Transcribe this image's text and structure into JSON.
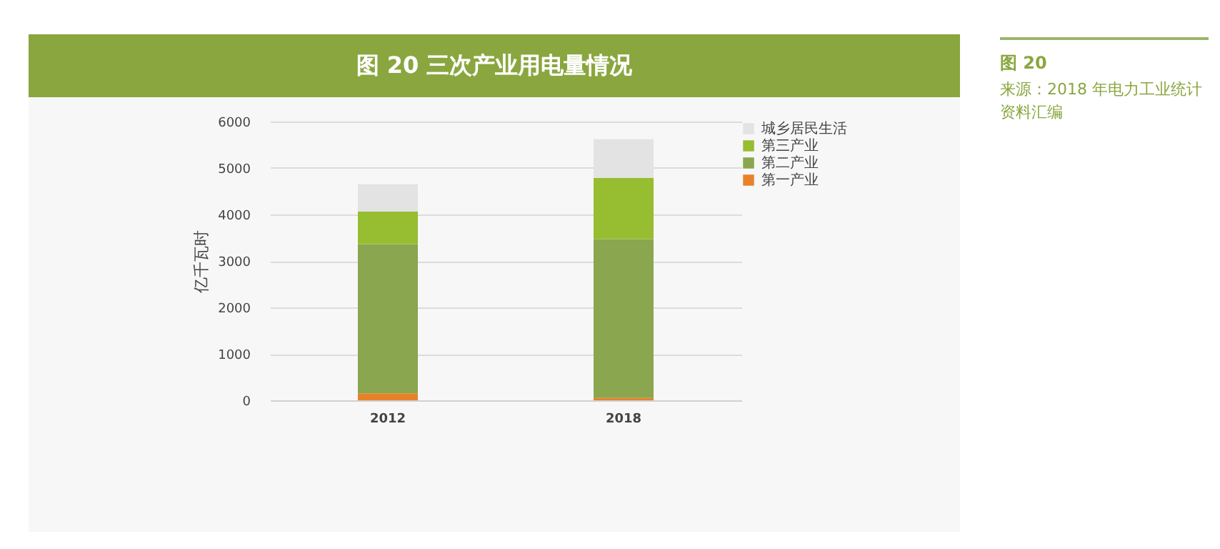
{
  "chart_data": {
    "type": "bar",
    "title": "图 20  三次产业用电量情况",
    "ylabel": "亿千瓦时",
    "categories": [
      "2012",
      "2018"
    ],
    "stacked": true,
    "series": [
      {
        "name": "第一产业",
        "color": "#e8822a",
        "values": [
          150,
          50
        ]
      },
      {
        "name": "第二产业",
        "color": "#8aa64f",
        "values": [
          3210,
          3420
        ]
      },
      {
        "name": "第三产业",
        "color": "#97bd31",
        "values": [
          700,
          1320
        ]
      },
      {
        "name": "城乡居民生活",
        "color": "#e3e3e3",
        "values": [
          590,
          830
        ]
      }
    ],
    "ylim": [
      0,
      6000
    ],
    "yticks": [
      0,
      1000,
      2000,
      3000,
      4000,
      5000,
      6000
    ],
    "grid": "y",
    "legend": "right",
    "annotations": [
      "图 20",
      "来源：2018 年电力工业统计资料汇编"
    ]
  }
}
